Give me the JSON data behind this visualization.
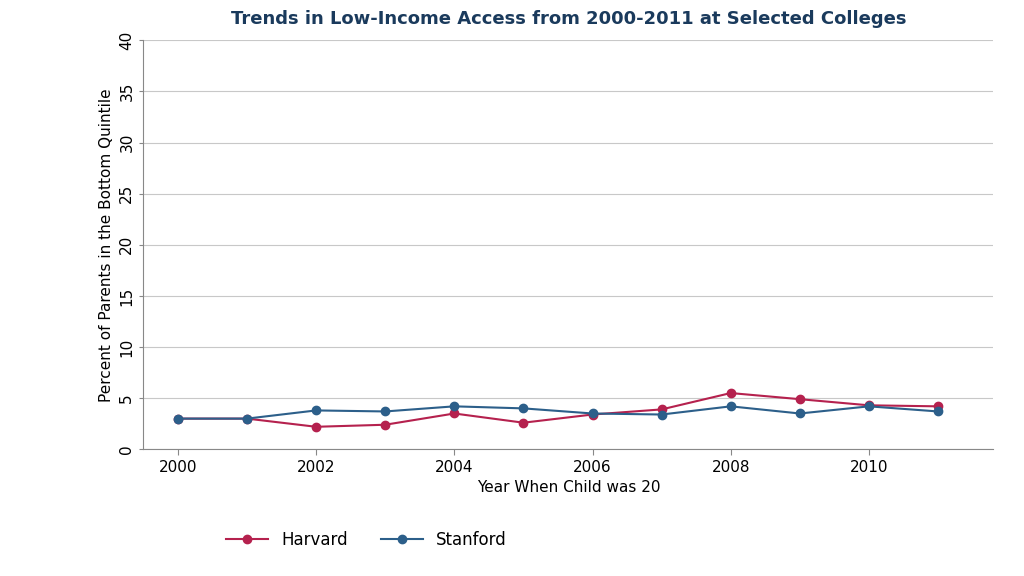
{
  "title": "Trends in Low-Income Access from 2000-2011 at Selected Colleges",
  "xlabel": "Year When Child was 20",
  "ylabel": "Percent of Parents in the Bottom Quintile",
  "years": [
    2000,
    2001,
    2002,
    2003,
    2004,
    2005,
    2006,
    2007,
    2008,
    2009,
    2010,
    2011
  ],
  "harvard": [
    3.0,
    3.0,
    2.2,
    2.4,
    3.5,
    2.6,
    3.4,
    3.9,
    5.5,
    4.9,
    4.3,
    4.2
  ],
  "stanford": [
    3.0,
    3.0,
    3.8,
    3.7,
    4.2,
    4.0,
    3.5,
    3.4,
    4.2,
    3.5,
    4.2,
    3.7
  ],
  "harvard_color": "#b5214e",
  "stanford_color": "#2c5f8a",
  "ylim": [
    0,
    40
  ],
  "yticks": [
    0,
    5,
    10,
    15,
    20,
    25,
    30,
    35,
    40
  ],
  "xticks": [
    2000,
    2002,
    2004,
    2006,
    2008,
    2010
  ],
  "background_color": "#ffffff",
  "grid_color": "#c8c8c8",
  "title_fontsize": 13,
  "label_fontsize": 11,
  "tick_fontsize": 11,
  "legend_fontsize": 12
}
